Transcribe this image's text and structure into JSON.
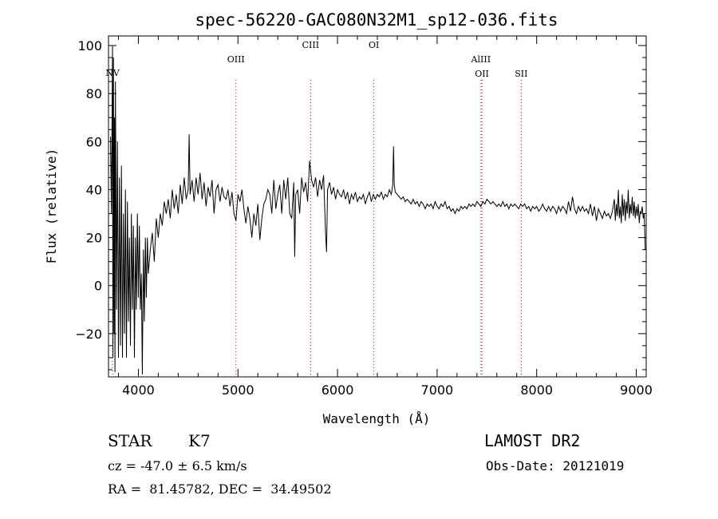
{
  "chart_data": {
    "type": "line",
    "title": "spec-56220-GAC080N32M1_sp12-036.fits",
    "xlabel": "Wavelength (Å)",
    "ylabel": "Flux (relative)",
    "xlim": [
      3700,
      9100
    ],
    "ylim": [
      -38,
      104
    ],
    "x_ticks": [
      4000,
      5000,
      6000,
      7000,
      8000,
      9000
    ],
    "y_ticks": [
      -20,
      0,
      20,
      40,
      60,
      80,
      100
    ],
    "grid": false,
    "line_color": "#000000",
    "marker_line_color": "#cc0000",
    "spectral_lines": [
      {
        "label": "NV",
        "x": 3740,
        "row": 3
      },
      {
        "label": "OIII",
        "x": 4980,
        "row": 1
      },
      {
        "label": "CIII",
        "x": 5730,
        "row": 0
      },
      {
        "label": "OI",
        "x": 6365,
        "row": 0
      },
      {
        "label": "AlIII",
        "x": 7440,
        "row": 1
      },
      {
        "label": "OII",
        "x": 7450,
        "row": 2
      },
      {
        "label": "SII",
        "x": 7845,
        "row": 2
      }
    ],
    "series": [
      {
        "points": [
          [
            3720,
            62
          ],
          [
            3730,
            30
          ],
          [
            3740,
            100
          ],
          [
            3745,
            -30
          ],
          [
            3750,
            95
          ],
          [
            3755,
            -20
          ],
          [
            3760,
            70
          ],
          [
            3765,
            -36
          ],
          [
            3770,
            85
          ],
          [
            3780,
            -10
          ],
          [
            3790,
            60
          ],
          [
            3800,
            -30
          ],
          [
            3810,
            45
          ],
          [
            3820,
            -25
          ],
          [
            3830,
            50
          ],
          [
            3840,
            -30
          ],
          [
            3850,
            30
          ],
          [
            3860,
            -20
          ],
          [
            3870,
            40
          ],
          [
            3880,
            -30
          ],
          [
            3890,
            35
          ],
          [
            3900,
            -15
          ],
          [
            3910,
            20
          ],
          [
            3920,
            -25
          ],
          [
            3930,
            30
          ],
          [
            3940,
            -10
          ],
          [
            3950,
            25
          ],
          [
            3960,
            -30
          ],
          [
            3970,
            20
          ],
          [
            3980,
            -10
          ],
          [
            3990,
            30
          ],
          [
            4000,
            -5
          ],
          [
            4010,
            25
          ],
          [
            4020,
            -10
          ],
          [
            4030,
            5
          ],
          [
            4040,
            -37
          ],
          [
            4050,
            15
          ],
          [
            4060,
            -15
          ],
          [
            4070,
            20
          ],
          [
            4080,
            -5
          ],
          [
            4090,
            20
          ],
          [
            4100,
            5
          ],
          [
            4120,
            15
          ],
          [
            4140,
            22
          ],
          [
            4160,
            10
          ],
          [
            4180,
            28
          ],
          [
            4200,
            20
          ],
          [
            4220,
            30
          ],
          [
            4240,
            25
          ],
          [
            4260,
            35
          ],
          [
            4280,
            30
          ],
          [
            4300,
            36
          ],
          [
            4320,
            28
          ],
          [
            4340,
            40
          ],
          [
            4360,
            32
          ],
          [
            4380,
            38
          ],
          [
            4400,
            30
          ],
          [
            4420,
            42
          ],
          [
            4440,
            34
          ],
          [
            4460,
            45
          ],
          [
            4480,
            36
          ],
          [
            4500,
            40
          ],
          [
            4510,
            63
          ],
          [
            4520,
            38
          ],
          [
            4540,
            44
          ],
          [
            4560,
            35
          ],
          [
            4580,
            45
          ],
          [
            4600,
            38
          ],
          [
            4620,
            47
          ],
          [
            4640,
            36
          ],
          [
            4660,
            43
          ],
          [
            4680,
            33
          ],
          [
            4700,
            41
          ],
          [
            4720,
            37
          ],
          [
            4740,
            44
          ],
          [
            4760,
            30
          ],
          [
            4780,
            40
          ],
          [
            4800,
            42
          ],
          [
            4820,
            35
          ],
          [
            4840,
            41
          ],
          [
            4860,
            37
          ],
          [
            4880,
            36
          ],
          [
            4900,
            40
          ],
          [
            4920,
            33
          ],
          [
            4940,
            39
          ],
          [
            4960,
            30
          ],
          [
            4980,
            27
          ],
          [
            5000,
            38
          ],
          [
            5020,
            35
          ],
          [
            5040,
            40
          ],
          [
            5060,
            32
          ],
          [
            5080,
            26
          ],
          [
            5100,
            33
          ],
          [
            5120,
            28
          ],
          [
            5140,
            20
          ],
          [
            5160,
            30
          ],
          [
            5180,
            25
          ],
          [
            5200,
            34
          ],
          [
            5220,
            19
          ],
          [
            5240,
            28
          ],
          [
            5260,
            34
          ],
          [
            5280,
            36
          ],
          [
            5300,
            40
          ],
          [
            5320,
            38
          ],
          [
            5340,
            30
          ],
          [
            5360,
            44
          ],
          [
            5380,
            32
          ],
          [
            5400,
            38
          ],
          [
            5420,
            42
          ],
          [
            5440,
            30
          ],
          [
            5460,
            44
          ],
          [
            5480,
            36
          ],
          [
            5500,
            45
          ],
          [
            5520,
            30
          ],
          [
            5540,
            28
          ],
          [
            5560,
            43
          ],
          [
            5570,
            12
          ],
          [
            5580,
            38
          ],
          [
            5600,
            40
          ],
          [
            5620,
            30
          ],
          [
            5640,
            45
          ],
          [
            5660,
            39
          ],
          [
            5680,
            43
          ],
          [
            5700,
            35
          ],
          [
            5720,
            52
          ],
          [
            5740,
            44
          ],
          [
            5760,
            41
          ],
          [
            5780,
            45
          ],
          [
            5800,
            37
          ],
          [
            5820,
            44
          ],
          [
            5840,
            40
          ],
          [
            5860,
            46
          ],
          [
            5880,
            22
          ],
          [
            5890,
            14
          ],
          [
            5900,
            40
          ],
          [
            5920,
            43
          ],
          [
            5940,
            38
          ],
          [
            5960,
            41
          ],
          [
            5980,
            36
          ],
          [
            6000,
            40
          ],
          [
            6020,
            38
          ],
          [
            6040,
            37
          ],
          [
            6060,
            40
          ],
          [
            6080,
            36
          ],
          [
            6100,
            39
          ],
          [
            6120,
            34
          ],
          [
            6140,
            38
          ],
          [
            6160,
            36
          ],
          [
            6180,
            39
          ],
          [
            6200,
            35
          ],
          [
            6220,
            37
          ],
          [
            6240,
            36
          ],
          [
            6260,
            38
          ],
          [
            6280,
            34
          ],
          [
            6300,
            37
          ],
          [
            6320,
            39
          ],
          [
            6340,
            35
          ],
          [
            6360,
            38
          ],
          [
            6380,
            36
          ],
          [
            6400,
            38
          ],
          [
            6420,
            37
          ],
          [
            6440,
            39
          ],
          [
            6460,
            36
          ],
          [
            6480,
            38
          ],
          [
            6500,
            37
          ],
          [
            6520,
            40
          ],
          [
            6540,
            38
          ],
          [
            6555,
            42
          ],
          [
            6563,
            58
          ],
          [
            6570,
            42
          ],
          [
            6580,
            39
          ],
          [
            6600,
            38
          ],
          [
            6620,
            37
          ],
          [
            6640,
            36
          ],
          [
            6660,
            37
          ],
          [
            6680,
            35
          ],
          [
            6700,
            36
          ],
          [
            6720,
            35
          ],
          [
            6740,
            34
          ],
          [
            6760,
            36
          ],
          [
            6780,
            34
          ],
          [
            6800,
            35
          ],
          [
            6820,
            33
          ],
          [
            6840,
            35
          ],
          [
            6860,
            34
          ],
          [
            6880,
            32
          ],
          [
            6900,
            34
          ],
          [
            6920,
            33
          ],
          [
            6940,
            34
          ],
          [
            6960,
            32
          ],
          [
            6980,
            35
          ],
          [
            7000,
            33
          ],
          [
            7020,
            32
          ],
          [
            7040,
            34
          ],
          [
            7060,
            33
          ],
          [
            7080,
            35
          ],
          [
            7100,
            32
          ],
          [
            7120,
            33
          ],
          [
            7140,
            31
          ],
          [
            7160,
            32
          ],
          [
            7180,
            30
          ],
          [
            7200,
            32
          ],
          [
            7220,
            31
          ],
          [
            7240,
            33
          ],
          [
            7260,
            32
          ],
          [
            7280,
            33
          ],
          [
            7300,
            32
          ],
          [
            7320,
            34
          ],
          [
            7340,
            33
          ],
          [
            7360,
            34
          ],
          [
            7380,
            33
          ],
          [
            7400,
            35
          ],
          [
            7420,
            34
          ],
          [
            7440,
            33
          ],
          [
            7460,
            35
          ],
          [
            7480,
            34
          ],
          [
            7500,
            36
          ],
          [
            7520,
            35
          ],
          [
            7540,
            34
          ],
          [
            7560,
            35
          ],
          [
            7580,
            34
          ],
          [
            7600,
            33
          ],
          [
            7620,
            34
          ],
          [
            7640,
            33
          ],
          [
            7660,
            35
          ],
          [
            7680,
            33
          ],
          [
            7700,
            34
          ],
          [
            7720,
            32
          ],
          [
            7740,
            34
          ],
          [
            7760,
            33
          ],
          [
            7780,
            34
          ],
          [
            7800,
            33
          ],
          [
            7820,
            32
          ],
          [
            7840,
            34
          ],
          [
            7860,
            33
          ],
          [
            7880,
            34
          ],
          [
            7900,
            32
          ],
          [
            7920,
            33
          ],
          [
            7940,
            31
          ],
          [
            7960,
            33
          ],
          [
            7980,
            32
          ],
          [
            8000,
            33
          ],
          [
            8020,
            31
          ],
          [
            8040,
            32
          ],
          [
            8060,
            34
          ],
          [
            8080,
            32
          ],
          [
            8100,
            31
          ],
          [
            8120,
            33
          ],
          [
            8140,
            31
          ],
          [
            8160,
            33
          ],
          [
            8180,
            32
          ],
          [
            8200,
            30
          ],
          [
            8220,
            33
          ],
          [
            8240,
            31
          ],
          [
            8260,
            33
          ],
          [
            8280,
            32
          ],
          [
            8300,
            30
          ],
          [
            8320,
            35
          ],
          [
            8340,
            31
          ],
          [
            8360,
            37
          ],
          [
            8380,
            32
          ],
          [
            8400,
            30
          ],
          [
            8420,
            33
          ],
          [
            8440,
            31
          ],
          [
            8460,
            33
          ],
          [
            8480,
            31
          ],
          [
            8500,
            32
          ],
          [
            8520,
            30
          ],
          [
            8540,
            34
          ],
          [
            8560,
            29
          ],
          [
            8580,
            33
          ],
          [
            8600,
            27
          ],
          [
            8620,
            32
          ],
          [
            8640,
            30
          ],
          [
            8660,
            28
          ],
          [
            8680,
            31
          ],
          [
            8700,
            29
          ],
          [
            8720,
            30
          ],
          [
            8740,
            28
          ],
          [
            8760,
            31
          ],
          [
            8780,
            36
          ],
          [
            8790,
            27
          ],
          [
            8800,
            34
          ],
          [
            8810,
            29
          ],
          [
            8820,
            40
          ],
          [
            8830,
            28
          ],
          [
            8840,
            33
          ],
          [
            8850,
            26
          ],
          [
            8860,
            38
          ],
          [
            8870,
            29
          ],
          [
            8880,
            36
          ],
          [
            8890,
            27
          ],
          [
            8900,
            35
          ],
          [
            8910,
            30
          ],
          [
            8920,
            40
          ],
          [
            8930,
            28
          ],
          [
            8940,
            34
          ],
          [
            8950,
            30
          ],
          [
            8960,
            37
          ],
          [
            8970,
            29
          ],
          [
            8980,
            35
          ],
          [
            8990,
            28
          ],
          [
            9000,
            33
          ],
          [
            9010,
            29
          ],
          [
            9020,
            34
          ],
          [
            9030,
            26
          ],
          [
            9040,
            31
          ],
          [
            9050,
            30
          ],
          [
            9060,
            33
          ],
          [
            9070,
            28
          ],
          [
            9080,
            30
          ],
          [
            9090,
            15
          ]
        ]
      }
    ]
  },
  "info": {
    "object_class": "STAR",
    "subclass": "K7",
    "survey": "LAMOST DR2",
    "redshift": "cz = -47.0 ± 6.5 km/s",
    "obs_date": "Obs-Date: 20121019",
    "coords": "RA =  81.45782, DEC =  34.49502"
  }
}
